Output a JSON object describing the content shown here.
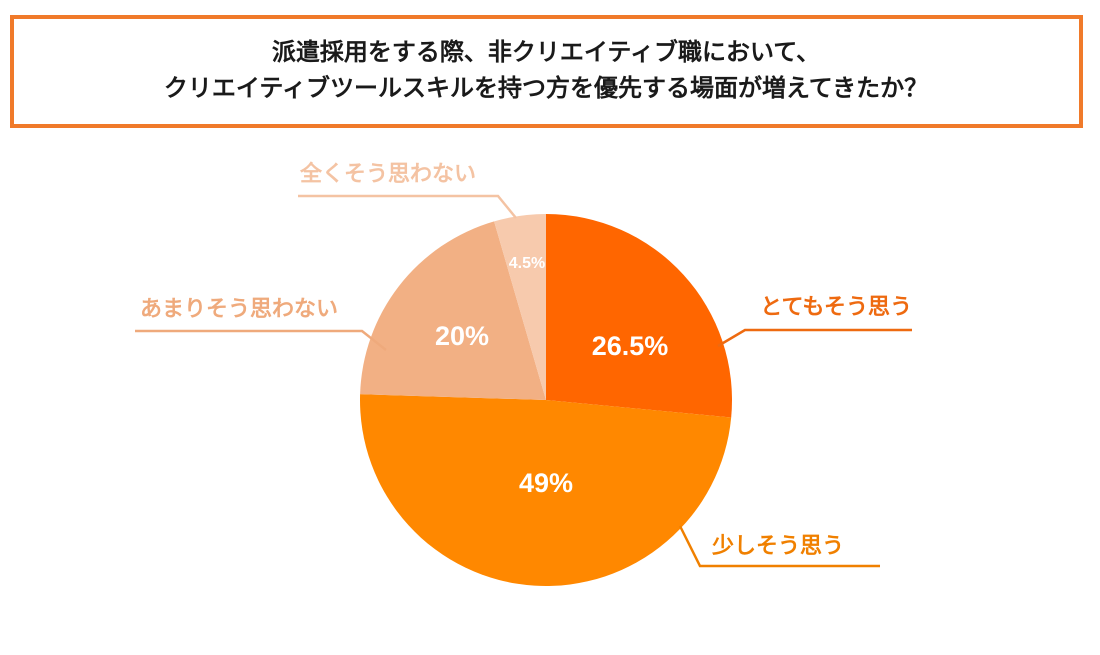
{
  "chart_data": {
    "type": "pie",
    "title": [
      "派遣採用をする際、非クリエイティブ職において、",
      "クリエイティブツールスキルを持つ方を優先する場面が増えてきたか？"
    ],
    "categories": [
      "とてもそう思う",
      "少しそう思う",
      "あまりそう思わない",
      "全くそう思わない"
    ],
    "values": [
      26.5,
      49,
      20,
      4.5
    ],
    "value_labels": [
      "26.5%",
      "49%",
      "20%",
      "4.5%"
    ],
    "colors": [
      "#ff6600",
      "#ff8800",
      "#f2b084",
      "#f7caad"
    ],
    "label_colors": [
      "#ee6a10",
      "#f08000",
      "#efaa7c",
      "#f4c3a3"
    ]
  }
}
